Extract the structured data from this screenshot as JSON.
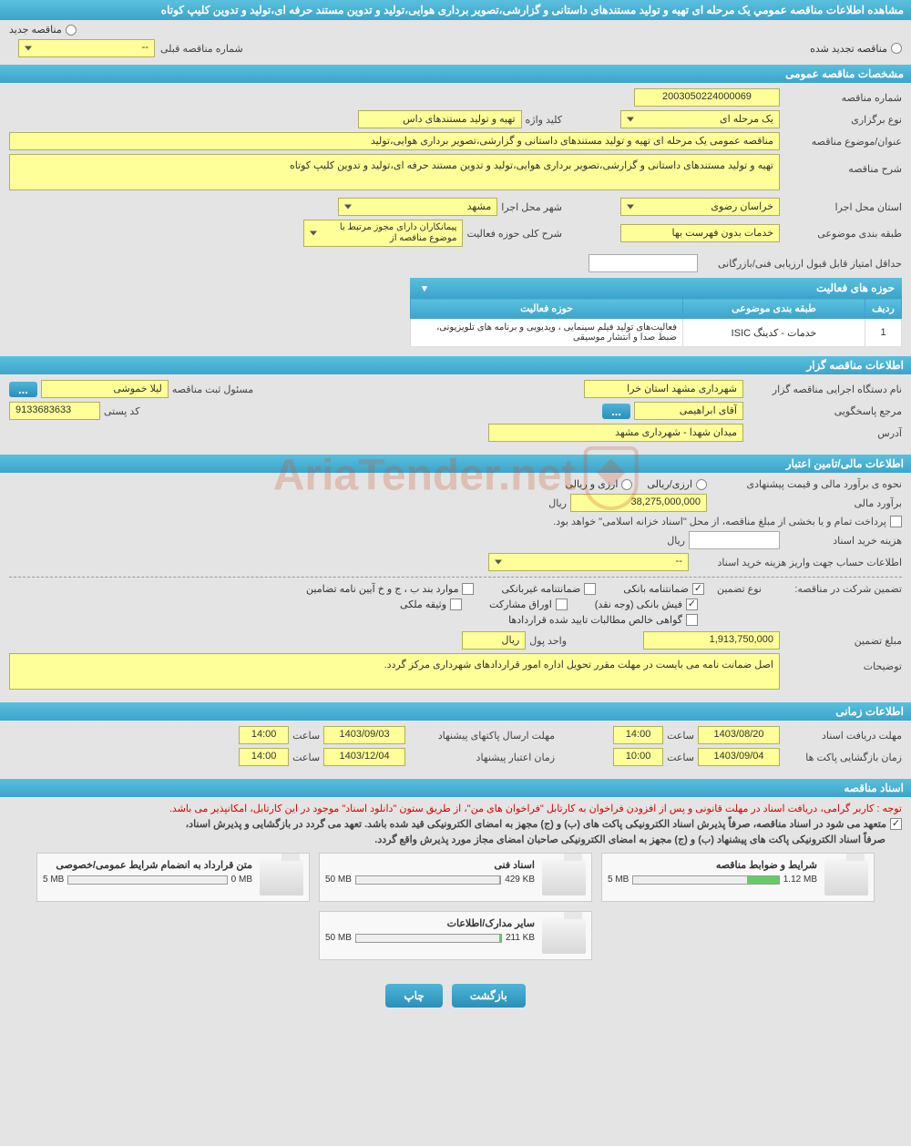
{
  "title": "مشاهده اطلاعات مناقصه عمومي یک مرحله ای تهیه و تولید مستندهای داستانی و گزارشی،تصویر برداری هوایی،تولید و تدوین مستند حرفه ای،تولید و تدوین کلیپ کوتاه",
  "tender_type": {
    "new_tender": "مناقصه جدید",
    "renewed_tender": "مناقصه تجدید شده",
    "prev_number_label": "شماره مناقصه قبلی",
    "prev_number_value": "--"
  },
  "sections": {
    "general": {
      "title": "مشخصات مناقصه عمومی",
      "tender_number_label": "شماره مناقصه",
      "tender_number": "2003050224000069",
      "holding_type_label": "نوع برگزاری",
      "holding_type": "یک مرحله ای",
      "keyword_label": "کلید واژه",
      "keyword": "تهیه و تولید مستندهای داس",
      "subject_label": "عنوان/موضوع مناقصه",
      "subject": "مناقصه عمومی یک مرحله ای تهیه و تولید مستندهای داستانی و گزارشی،تصویر برداری هوایی،تولید",
      "description_label": "شرح مناقصه",
      "description": "تهیه و تولید مستندهای داستانی و گزارشی،تصویر برداری هوایی،تولید و تدوین مستند حرفه ای،تولید و تدوین کلیپ کوتاه",
      "province_label": "استان محل اجرا",
      "province": "خراسان رضوی",
      "city_label": "شهر محل اجرا",
      "city": "مشهد",
      "category_label": "طبقه بندی موضوعی",
      "category": "خدمات بدون فهرست بها",
      "activity_scope_label": "شرح کلی حوزه فعالیت",
      "activity_scope": "پیمانکاران دارای مجوز مرتبط با موضوع مناقصه از",
      "min_score_label": "حداقل امتیاز قابل قبول ارزیابی فنی/بازرگانی",
      "activity_table": {
        "header": "حوزه های فعالیت",
        "cols": {
          "row": "ردیف",
          "category": "طبقه بندی موضوعی",
          "scope": "حوزه فعالیت"
        },
        "rows": [
          {
            "row": "1",
            "category": "خدمات - کدینگ ISIC",
            "scope": "فعالیت‌های تولید فیلم سینمایی ، ویدیویی و برنامه های تلویزیونی، ضبط صدا و انتشار موسیقی"
          }
        ]
      }
    },
    "client": {
      "title": "اطلاعات مناقصه گزار",
      "org_label": "نام دستگاه اجرایی مناقصه گزار",
      "org": "شهرداری مشهد استان خرا",
      "registrar_label": "مسئول ثبت مناقصه",
      "registrar": "لیلا خموشی",
      "contact_label": "مرجع پاسخگویی",
      "contact": "آقای ابراهیمی",
      "postal_label": "کد پستی",
      "postal": "9133683633",
      "address_label": "آدرس",
      "address": "میدان شهدا - شهرداری مشهد",
      "more_btn": "..."
    },
    "finance": {
      "title": "اطلاعات مالی/تامین اعتبار",
      "estimate_method_label": "نحوه ی برآورد مالی و قیمت پیشنهادی",
      "estimate_method_radio1": "ارزی/ریالی",
      "estimate_method_radio2": "ارزی و ریالی",
      "estimate_label": "برآورد مالی",
      "estimate": "38,275,000,000",
      "rial": "ریال",
      "islamic_note": "پرداخت تمام و یا بخشی از مبلغ مناقصه، از محل \"اسناد خزانه اسلامی\" خواهد بود.",
      "doc_cost_label": "هزینه خرید اسناد",
      "account_label": "اطلاعات حساب جهت واریز هزینه خرید اسناد",
      "account_value": "--",
      "guarantee_label": "تضمین شرکت در مناقصه:",
      "guarantee_type_label": "نوع تضمین",
      "g_bank": "ضمانتنامه بانکی",
      "g_nonbank": "ضمانتنامه غیربانکی",
      "g_cases": "موارد بند ب ، ج و خ آیین نامه تضامین",
      "g_fish": "فیش بانکی (وجه نقد)",
      "g_partnership": "اوراق مشارکت",
      "g_property": "وثیقه ملکی",
      "g_cert": "گواهی خالص مطالبات تایید شده قراردادها",
      "guarantee_amount_label": "مبلغ تضمین",
      "guarantee_amount": "1,913,750,000",
      "unit_label": "واحد پول",
      "unit": "ریال",
      "notes_label": "توضیحات",
      "notes": "اصل ضمانت نامه می بایست در مهلت مقرر تحویل اداره امور قراردادهای شهرداری مرکز گردد."
    },
    "timing": {
      "title": "اطلاعات زمانی",
      "receive_deadline_label": "مهلت دریافت اسناد",
      "receive_deadline_date": "1403/08/20",
      "send_deadline_label": "مهلت ارسال پاکتهای پیشنهاد",
      "send_deadline_date": "1403/09/03",
      "open_date_label": "زمان بازگشایی پاکت ها",
      "open_date": "1403/09/04",
      "validity_label": "زمان اعتبار پیشنهاد",
      "validity_date": "1403/12/04",
      "time_label": "ساعت",
      "t1": "14:00",
      "t2": "14:00",
      "t3": "10:00",
      "t4": "14:00"
    },
    "documents": {
      "title": "اسناد مناقصه",
      "notice": "توجه : کاربر گرامی، دریافت اسناد در مهلت قانونی و پس از افزودن فراخوان به کارتابل \"فراخوان های من\"، از طریق ستون \"دانلود اسناد\" موجود در این کارتابل، امکانپذیر می باشد.",
      "commitment1": "متعهد می شود در اسناد مناقصه، صرفاً پذیرش اسناد الکترونیکی پاکت های (ب) و (ج) مجهز به امضای الکترونیکی قید شده باشد. تعهد می گردد در بازگشایی و پذیرش اسناد،",
      "commitment2": "صرفاً اسناد الکترونیکی پاکت های پیشنهاد (ب) و (ج) مجهز به امضای الکترونیکی صاحبان امضای مجاز مورد پذیرش واقع گردد.",
      "files": [
        {
          "title": "شرایط و ضوابط مناقصه",
          "size": "1.12 MB",
          "max": "5 MB",
          "pct": 22
        },
        {
          "title": "اسناد فنی",
          "size": "429 KB",
          "max": "50 MB",
          "pct": 1
        },
        {
          "title": "متن قرارداد به انضمام شرایط عمومی/خصوصی",
          "size": "0 MB",
          "max": "5 MB",
          "pct": 0
        },
        {
          "title": "سایر مدارک/اطلاعات",
          "size": "211 KB",
          "max": "50 MB",
          "pct": 1
        }
      ]
    }
  },
  "footer": {
    "back": "بازگشت",
    "print": "چاپ"
  },
  "watermark": "AriaTender.net",
  "colors": {
    "header_bg": "#3ca4cb",
    "yellow": "#ffff99",
    "page_bg": "#e4e4e4",
    "red_text": "#d00"
  }
}
